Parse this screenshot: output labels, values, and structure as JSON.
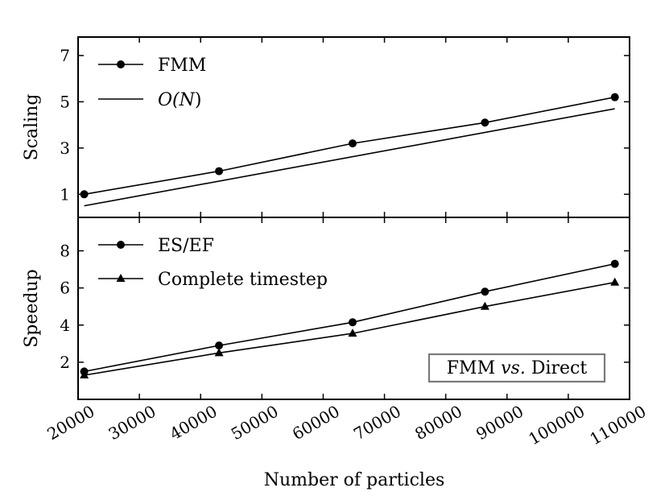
{
  "chart_data": [
    {
      "type": "line",
      "panel": "top",
      "ylabel": "Scaling",
      "xlim": [
        20000,
        110000
      ],
      "ylim": [
        0.0,
        7.8
      ],
      "yticks": [
        1,
        3,
        5,
        7
      ],
      "ytick_labels": [
        "1",
        "3",
        "5",
        "7"
      ],
      "legend_location": "top-left",
      "series": [
        {
          "name": "FMM",
          "marker": "circle",
          "x": [
            21000,
            43000,
            64800,
            86400,
            107600
          ],
          "y": [
            1.0,
            2.0,
            3.2,
            4.1,
            5.2
          ]
        },
        {
          "name": "O(N)",
          "marker": "none",
          "x": [
            21000,
            107600
          ],
          "y": [
            0.5,
            4.7
          ]
        }
      ]
    },
    {
      "type": "line",
      "panel": "bottom",
      "ylabel": "Speedup",
      "xlabel": "Number of particles",
      "xlim": [
        20000,
        110000
      ],
      "ylim": [
        0.0,
        9.8
      ],
      "yticks": [
        2,
        4,
        6,
        8
      ],
      "ytick_labels": [
        "2",
        "4",
        "6",
        "8"
      ],
      "xticks": [
        20000,
        30000,
        40000,
        50000,
        60000,
        70000,
        80000,
        90000,
        100000,
        110000
      ],
      "xtick_labels": [
        "20000",
        "30000",
        "40000",
        "50000",
        "60000",
        "70000",
        "80000",
        "90000",
        "100000",
        "110000"
      ],
      "legend_location": "top-left",
      "annotation": {
        "prefix": "FMM ",
        "italic": "vs.",
        "suffix": " Direct",
        "location": "bottom-right"
      },
      "series": [
        {
          "name": "ES/EF",
          "marker": "circle",
          "x": [
            21000,
            43000,
            64800,
            86400,
            107600
          ],
          "y": [
            1.5,
            2.9,
            4.15,
            5.8,
            7.3
          ]
        },
        {
          "name": "Complete timestep",
          "marker": "triangle",
          "x": [
            21000,
            43000,
            64800,
            86400,
            107600
          ],
          "y": [
            1.3,
            2.5,
            3.55,
            5.0,
            6.3
          ]
        }
      ]
    }
  ],
  "legend_glyphs": {
    "top_series2_prefix": "O(",
    "top_series2_var": "N",
    "top_series2_suffix": ")"
  }
}
